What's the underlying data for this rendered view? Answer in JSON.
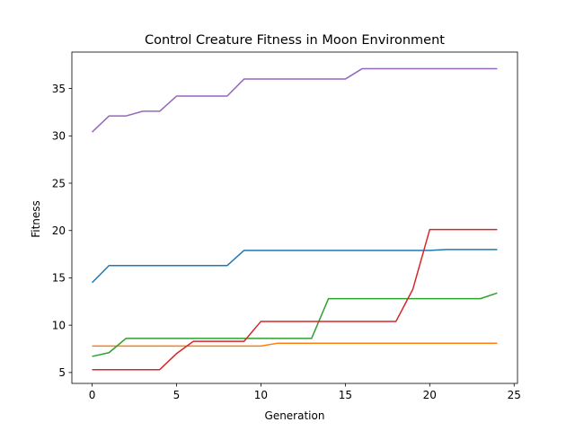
{
  "chart_data": {
    "type": "line",
    "title": "Control Creature Fitness in Moon Environment",
    "xlabel": "Generation",
    "ylabel": "Fitness",
    "xlim": [
      -1.2,
      25.2
    ],
    "ylim": [
      3.85,
      38.85
    ],
    "xticks": [
      0,
      5,
      10,
      15,
      20,
      25
    ],
    "yticks": [
      5,
      10,
      15,
      20,
      25,
      30,
      35
    ],
    "grid": false,
    "legend": "none",
    "x": [
      0,
      1,
      2,
      3,
      4,
      5,
      6,
      7,
      8,
      9,
      10,
      11,
      12,
      13,
      14,
      15,
      16,
      17,
      18,
      19,
      20,
      21,
      22,
      23,
      24
    ],
    "series": [
      {
        "color": "#1f77b4",
        "values": [
          14.5,
          16.3,
          16.3,
          16.3,
          16.3,
          16.3,
          16.3,
          16.3,
          16.3,
          17.9,
          17.9,
          17.9,
          17.9,
          17.9,
          17.9,
          17.9,
          17.9,
          17.9,
          17.9,
          17.9,
          17.9,
          18.0,
          18.0,
          18.0,
          18.0
        ]
      },
      {
        "color": "#ff7f0e",
        "values": [
          7.8,
          7.8,
          7.8,
          7.8,
          7.8,
          7.8,
          7.8,
          7.8,
          7.8,
          7.8,
          7.8,
          8.1,
          8.1,
          8.1,
          8.1,
          8.1,
          8.1,
          8.1,
          8.1,
          8.1,
          8.1,
          8.1,
          8.1,
          8.1,
          8.1
        ]
      },
      {
        "color": "#2ca02c",
        "values": [
          6.7,
          7.1,
          8.6,
          8.6,
          8.6,
          8.6,
          8.6,
          8.6,
          8.6,
          8.6,
          8.6,
          8.6,
          8.6,
          8.6,
          12.8,
          12.8,
          12.8,
          12.8,
          12.8,
          12.8,
          12.8,
          12.8,
          12.8,
          12.8,
          13.4
        ]
      },
      {
        "color": "#d62728",
        "values": [
          5.3,
          5.3,
          5.3,
          5.3,
          5.3,
          7.0,
          8.3,
          8.3,
          8.3,
          8.3,
          10.4,
          10.4,
          10.4,
          10.4,
          10.4,
          10.4,
          10.4,
          10.4,
          10.4,
          13.8,
          20.1,
          20.1,
          20.1,
          20.1,
          20.1
        ]
      },
      {
        "color": "#9467bd",
        "values": [
          30.4,
          32.1,
          32.1,
          32.6,
          32.6,
          34.2,
          34.2,
          34.2,
          34.2,
          36.0,
          36.0,
          36.0,
          36.0,
          36.0,
          36.0,
          36.0,
          37.1,
          37.1,
          37.1,
          37.1,
          37.1,
          37.1,
          37.1,
          37.1,
          37.1
        ]
      }
    ]
  }
}
